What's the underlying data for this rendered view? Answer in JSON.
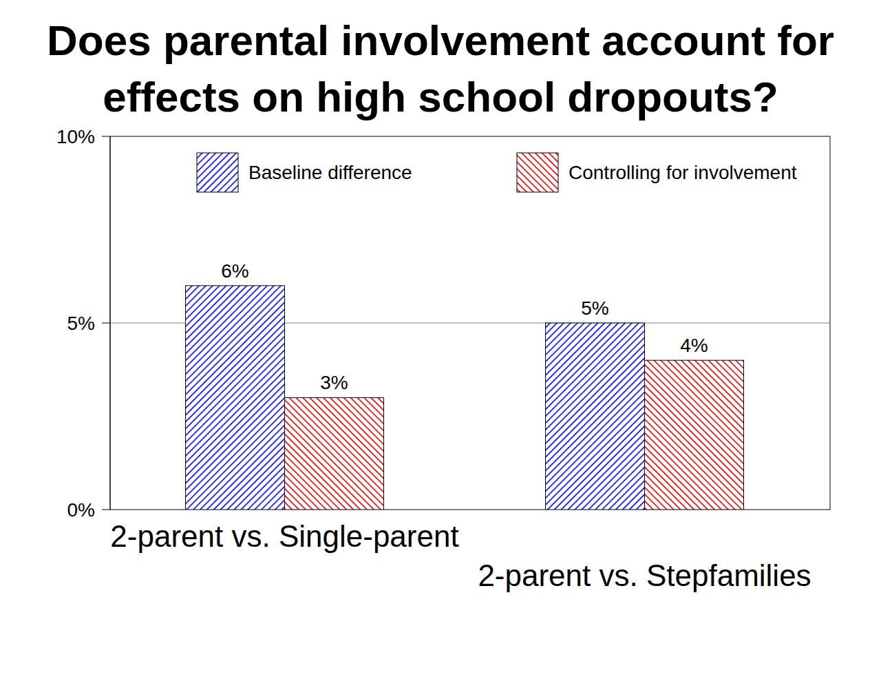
{
  "chart_data": {
    "type": "bar",
    "title": "Does parental involvement account for effects on high school dropouts?",
    "categories": [
      "2-parent vs. Single-parent",
      "2-parent vs. Stepfamilies"
    ],
    "series": [
      {
        "name": "Baseline difference",
        "color": "#0000cc",
        "values": [
          6,
          5
        ],
        "value_labels": [
          "6%",
          "5%"
        ]
      },
      {
        "name": "Controlling for involvement",
        "color": "#cc0000",
        "values": [
          3,
          4
        ],
        "value_labels": [
          "3%",
          "4%"
        ]
      }
    ],
    "ylim": [
      0,
      10
    ],
    "yticks": [
      {
        "value": 0,
        "label": "0%"
      },
      {
        "value": 5,
        "label": "5%"
      },
      {
        "value": 10,
        "label": "10%"
      }
    ],
    "grid": true,
    "legend": "top",
    "data_labels": true
  }
}
